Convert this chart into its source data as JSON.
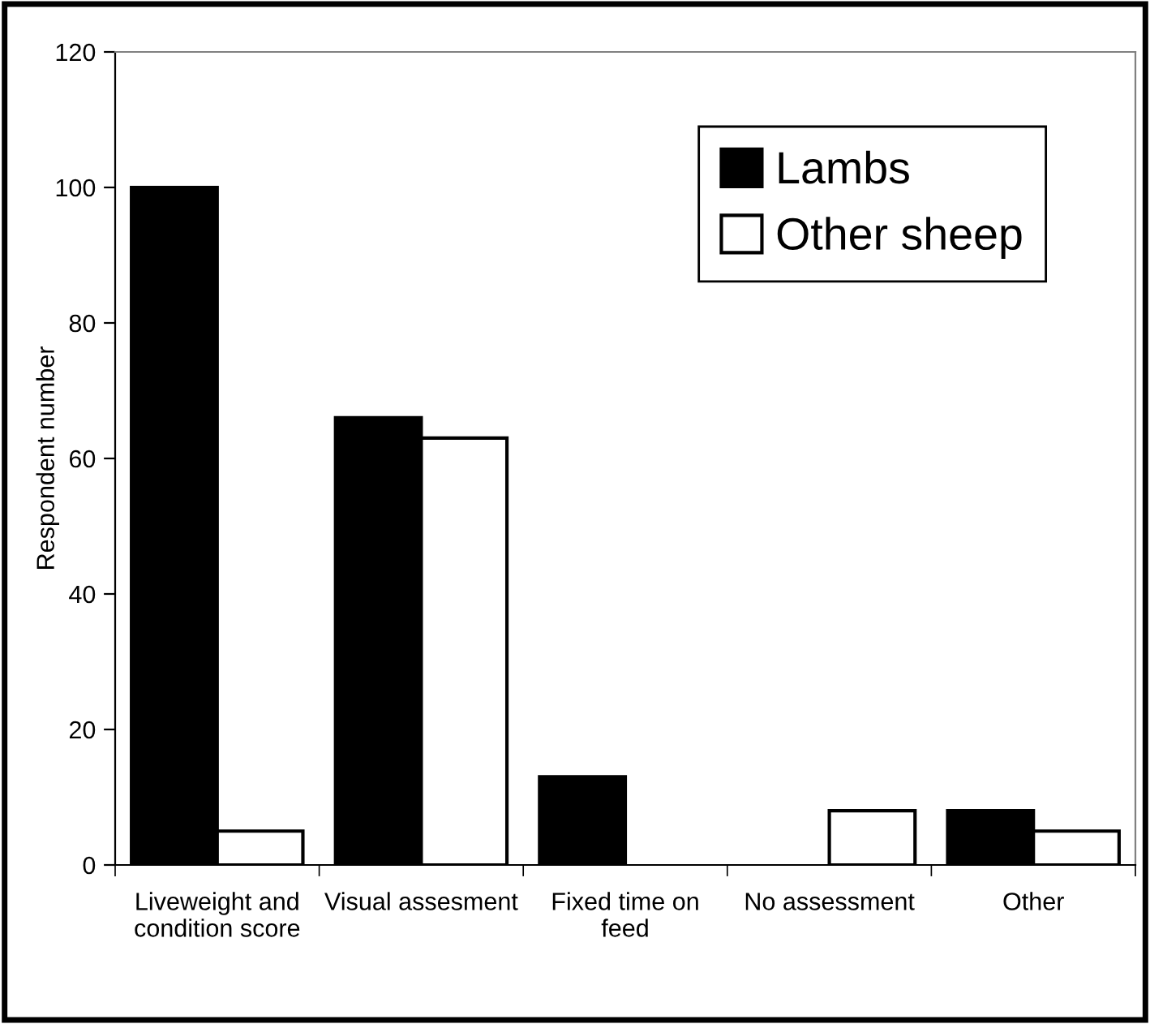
{
  "chart_data": {
    "type": "bar",
    "ylabel": "Respondent number",
    "categories": [
      "Liveweight and\ncondition score",
      "Visual assesment",
      "Fixed time on\nfeed",
      "No assessment",
      "Other"
    ],
    "series": [
      {
        "name": "Lambs",
        "color": "#000000",
        "values": [
          100,
          66,
          13,
          0,
          8
        ]
      },
      {
        "name": "Other sheep",
        "color": "#ffffff",
        "values": [
          5,
          63,
          0,
          8,
          5
        ]
      }
    ],
    "ylim": [
      0,
      120
    ],
    "yticks": [
      0,
      20,
      40,
      60,
      80,
      100,
      120
    ],
    "grid": false,
    "legend": "top right"
  }
}
